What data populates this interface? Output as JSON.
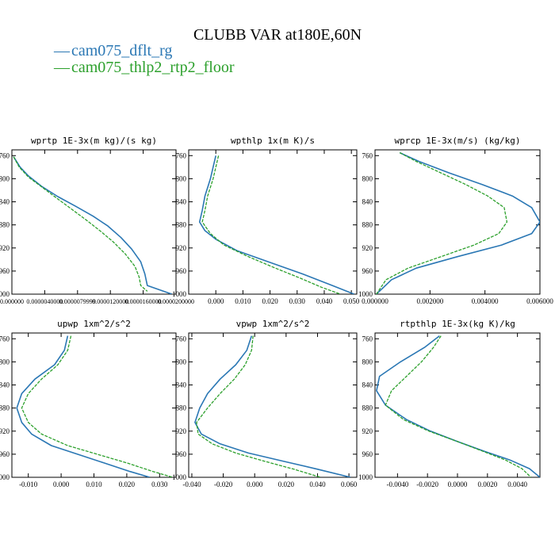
{
  "figure": {
    "title": "CLUBB VAR at180E,60N",
    "legend": [
      {
        "label": "cam075_dflt_rg",
        "color": "#2a77b4"
      },
      {
        "label": "cam075_thlp2_rtp2_floor",
        "color": "#2ca02c"
      }
    ]
  },
  "chart_data": [
    {
      "type": "line",
      "title": "wprtp  1E-3x(m kg)/(s kg)",
      "xlim": [
        0.0,
        2e-05
      ],
      "ylim": [
        1000,
        750
      ],
      "yinvert": true,
      "yticks": [
        760,
        800,
        840,
        880,
        920,
        960,
        1000
      ],
      "xticks": [
        0.0,
        4e-06,
        8e-06,
        1.2e-05,
        1.6e-05,
        2e-05
      ],
      "xtick_labels": [
        "0.000000",
        "0.0000040000",
        "0.0000079999",
        "0.0000120000",
        "0.0000160000",
        "0.0000200000"
      ],
      "series": [
        {
          "name": "cam075_dflt_rg",
          "color": "#2a77b4",
          "dashed": false,
          "x": [
            2e-07,
            1e-06,
            2e-06,
            3.6e-06,
            5.6e-06,
            7.8e-06,
            9.9e-06,
            1.17e-05,
            1.33e-05,
            1.46e-05,
            1.57e-05,
            1.62e-05,
            1.65e-05,
            1.95e-05
          ],
          "y": [
            762,
            780,
            795,
            813,
            831,
            848,
            865,
            882,
            902,
            922,
            944,
            965,
            985,
            1000
          ]
        },
        {
          "name": "cam075_thlp2_rtp2_floor",
          "color": "#2ca02c",
          "dashed": true,
          "x": [
            2e-07,
            9e-07,
            2e-06,
            3.7e-06,
            5.5e-06,
            7.3e-06,
            9.1e-06,
            1.08e-05,
            1.24e-05,
            1.38e-05,
            1.5e-05,
            1.55e-05,
            1.57e-05,
            1.65e-05
          ],
          "y": [
            762,
            780,
            797,
            815,
            834,
            853,
            872,
            891,
            910,
            930,
            952,
            970,
            985,
            995
          ]
        }
      ]
    },
    {
      "type": "line",
      "title": "wpthlp  1x(m K)/s",
      "xlim": [
        -0.01,
        0.052
      ],
      "ylim": [
        1000,
        750
      ],
      "yinvert": true,
      "yticks": [
        760,
        800,
        840,
        880,
        920,
        960,
        1000
      ],
      "xticks": [
        0.0,
        0.01,
        0.02,
        0.03,
        0.04,
        0.05
      ],
      "xtick_labels": [
        "0.000",
        "0.010",
        "0.020",
        "0.030",
        "0.040",
        "0.050"
      ],
      "series": [
        {
          "name": "cam075_dflt_rg",
          "color": "#2a77b4",
          "dashed": false,
          "x": [
            0.0,
            -0.001,
            -0.002,
            -0.004,
            -0.005,
            -0.006,
            -0.004,
            0.0,
            0.008,
            0.02,
            0.032,
            0.043,
            0.051
          ],
          "y": [
            760,
            780,
            800,
            830,
            855,
            875,
            890,
            905,
            925,
            945,
            965,
            985,
            1000
          ]
        },
        {
          "name": "cam075_thlp2_rtp2_floor",
          "color": "#2ca02c",
          "dashed": true,
          "x": [
            0.001,
            0.0,
            -0.001,
            -0.003,
            -0.004,
            -0.005,
            -0.002,
            0.003,
            0.012,
            0.022,
            0.031,
            0.039,
            0.046
          ],
          "y": [
            760,
            780,
            800,
            830,
            855,
            875,
            895,
            915,
            935,
            955,
            972,
            988,
            1000
          ]
        }
      ]
    },
    {
      "type": "line",
      "title": "wprcp  1E-3x(m/s) (kg/kg)",
      "xlim": [
        0.0,
        0.006
      ],
      "ylim": [
        1000,
        750
      ],
      "yinvert": true,
      "yticks": [
        760,
        800,
        840,
        880,
        920,
        960,
        1000
      ],
      "xticks": [
        0.0,
        0.002,
        0.004,
        0.006
      ],
      "xtick_labels": [
        "0.000000",
        "0.002000",
        "0.004000",
        "0.006000"
      ],
      "series": [
        {
          "name": "cam075_dflt_rg",
          "color": "#2a77b4",
          "dashed": false,
          "x": [
            0.0009,
            0.0016,
            0.0027,
            0.0039,
            0.005,
            0.0057,
            0.006,
            0.0057,
            0.0046,
            0.003,
            0.0015,
            0.0006,
            5e-05
          ],
          "y": [
            755,
            770,
            790,
            810,
            830,
            850,
            875,
            895,
            915,
            935,
            955,
            975,
            1000
          ]
        },
        {
          "name": "cam075_thlp2_rtp2_floor",
          "color": "#2ca02c",
          "dashed": true,
          "x": [
            0.0009,
            0.0015,
            0.0024,
            0.0033,
            0.0041,
            0.0047,
            0.0048,
            0.0045,
            0.0036,
            0.0024,
            0.0012,
            0.0004,
            5e-05
          ],
          "y": [
            755,
            770,
            790,
            810,
            830,
            850,
            875,
            895,
            915,
            935,
            955,
            975,
            1000
          ]
        }
      ]
    },
    {
      "type": "line",
      "title": "upwp  1xm^2/s^2",
      "xlim": [
        -0.015,
        0.035
      ],
      "ylim": [
        1000,
        750
      ],
      "yinvert": true,
      "yticks": [
        760,
        800,
        840,
        880,
        920,
        960,
        1000
      ],
      "xticks": [
        -0.01,
        0.0,
        0.01,
        0.02,
        0.03
      ],
      "xtick_labels": [
        "-0.010",
        "0.000",
        "0.010",
        "0.020",
        "0.030"
      ],
      "series": [
        {
          "name": "cam075_dflt_rg",
          "color": "#2a77b4",
          "dashed": false,
          "x": [
            0.002,
            0.001,
            -0.002,
            -0.008,
            -0.012,
            -0.0135,
            -0.012,
            -0.009,
            -0.003,
            0.005,
            0.013,
            0.021,
            0.027
          ],
          "y": [
            755,
            780,
            805,
            830,
            855,
            880,
            905,
            925,
            945,
            960,
            975,
            990,
            1000
          ]
        },
        {
          "name": "cam075_thlp2_rtp2_floor",
          "color": "#2ca02c",
          "dashed": true,
          "x": [
            0.003,
            0.002,
            -0.001,
            -0.006,
            -0.01,
            -0.012,
            -0.01,
            -0.006,
            0.002,
            0.011,
            0.02,
            0.028,
            0.034
          ],
          "y": [
            755,
            780,
            805,
            830,
            855,
            880,
            905,
            925,
            945,
            960,
            975,
            990,
            1000
          ]
        }
      ]
    },
    {
      "type": "line",
      "title": "vpwp  1xm^2/s^2",
      "xlim": [
        -0.042,
        0.065
      ],
      "ylim": [
        1000,
        750
      ],
      "yinvert": true,
      "yticks": [
        760,
        800,
        840,
        880,
        920,
        960,
        1000
      ],
      "xticks": [
        -0.04,
        -0.02,
        0.0,
        0.02,
        0.04,
        0.06
      ],
      "xtick_labels": [
        "-0.040",
        "-0.020",
        "0.000",
        "0.020",
        "0.040",
        "0.060"
      ],
      "series": [
        {
          "name": "cam075_dflt_rg",
          "color": "#2a77b4",
          "dashed": false,
          "x": [
            -0.002,
            -0.005,
            -0.012,
            -0.022,
            -0.03,
            -0.035,
            -0.038,
            -0.034,
            -0.022,
            -0.004,
            0.018,
            0.04,
            0.061
          ],
          "y": [
            755,
            780,
            805,
            830,
            855,
            880,
            905,
            925,
            942,
            958,
            972,
            986,
            1000
          ]
        },
        {
          "name": "cam075_thlp2_rtp2_floor",
          "color": "#2ca02c",
          "dashed": true,
          "x": [
            -0.001,
            -0.002,
            -0.006,
            -0.013,
            -0.022,
            -0.03,
            -0.037,
            -0.036,
            -0.027,
            -0.012,
            0.006,
            0.025,
            0.042
          ],
          "y": [
            755,
            780,
            805,
            830,
            855,
            880,
            905,
            925,
            942,
            958,
            972,
            986,
            1000
          ]
        }
      ]
    },
    {
      "type": "line",
      "title": "rtpthlp  1E-3x(kg K)/kg",
      "xlim": [
        -0.0055,
        0.0055
      ],
      "ylim": [
        1000,
        750
      ],
      "yinvert": true,
      "yticks": [
        760,
        800,
        840,
        880,
        920,
        960,
        1000
      ],
      "xticks": [
        -0.004,
        -0.002,
        0.0,
        0.002,
        0.004
      ],
      "xtick_labels": [
        "-0.0040",
        "-0.0020",
        "0.0000",
        "0.0020",
        "0.0040"
      ],
      "series": [
        {
          "name": "cam075_dflt_rg",
          "color": "#2a77b4",
          "dashed": false,
          "x": [
            -0.0012,
            -0.0022,
            -0.0038,
            -0.0052,
            -0.0054,
            -0.0048,
            -0.0034,
            -0.0018,
            0.0,
            0.0018,
            0.0035,
            0.0048,
            0.0055
          ],
          "y": [
            755,
            775,
            800,
            825,
            850,
            875,
            900,
            920,
            938,
            955,
            970,
            985,
            1000
          ]
        },
        {
          "name": "cam075_thlp2_rtp2_floor",
          "color": "#2ca02c",
          "dashed": true,
          "x": [
            -0.0011,
            -0.0016,
            -0.0024,
            -0.0034,
            -0.0044,
            -0.0048,
            -0.0036,
            -0.0019,
            0.0,
            0.0017,
            0.0032,
            0.0043,
            0.0049
          ],
          "y": [
            755,
            775,
            800,
            825,
            850,
            875,
            900,
            920,
            938,
            955,
            970,
            985,
            1000
          ]
        }
      ]
    }
  ]
}
